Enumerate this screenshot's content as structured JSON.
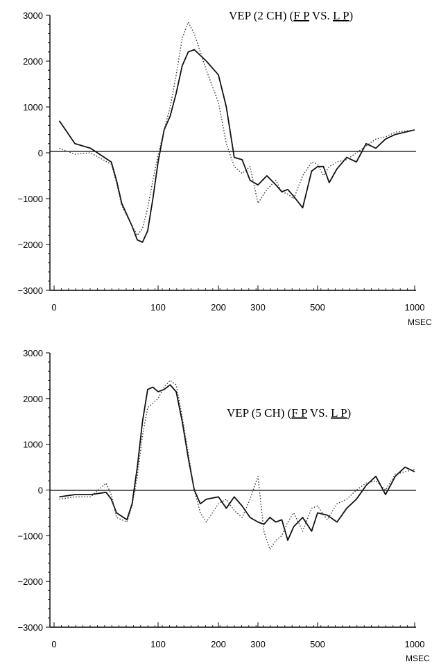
{
  "chart_data": [
    {
      "type": "line",
      "title_prefix": "VEP (2 CH) (",
      "title_fp": "F P",
      "title_vs": " VS. ",
      "title_lp": "L P",
      "title_suffix": ")",
      "xlabel": "MSEC",
      "ylabel": "",
      "x_ticks": [
        "0",
        "100",
        "200",
        "300",
        "500",
        "1000"
      ],
      "y_ticks": [
        "3000",
        "2000",
        "1000",
        "0",
        "−1000",
        "−2000",
        "−3000"
      ],
      "ylim": [
        -3000,
        3000
      ],
      "x_scale": "nonlinear (0,100,200,300,500,1000)",
      "series": [
        {
          "style": "solid",
          "color": "#111111",
          "x": [
            5,
            20,
            35,
            55,
            60,
            65,
            75,
            80,
            85,
            90,
            95,
            100,
            110,
            120,
            130,
            140,
            150,
            160,
            180,
            200,
            220,
            240,
            260,
            280,
            300,
            330,
            360,
            380,
            400,
            420,
            450,
            480,
            500,
            530,
            560,
            600,
            650,
            700,
            750,
            800,
            850,
            900,
            1000
          ],
          "y": [
            700,
            200,
            100,
            -200,
            -600,
            -1100,
            -1600,
            -1900,
            -1950,
            -1700,
            -1000,
            -200,
            500,
            800,
            1300,
            1900,
            2200,
            2250,
            2000,
            1700,
            1000,
            -100,
            -150,
            -600,
            -700,
            -500,
            -700,
            -850,
            -800,
            -950,
            -1200,
            -400,
            -300,
            -300,
            -650,
            -350,
            -100,
            -200,
            200,
            100,
            300,
            400,
            500
          ]
        },
        {
          "style": "dotted",
          "color": "#333333",
          "x": [
            5,
            20,
            35,
            55,
            60,
            65,
            75,
            80,
            85,
            90,
            95,
            100,
            110,
            120,
            130,
            140,
            150,
            160,
            180,
            200,
            220,
            240,
            260,
            280,
            300,
            330,
            360,
            380,
            400,
            420,
            450,
            480,
            500,
            530,
            560,
            600,
            650,
            700,
            750,
            800,
            850,
            900,
            1000
          ],
          "y": [
            100,
            -30,
            0,
            -250,
            -650,
            -1150,
            -1600,
            -1800,
            -1650,
            -1200,
            -600,
            -50,
            500,
            1000,
            1700,
            2500,
            2850,
            2600,
            1800,
            1100,
            200,
            -300,
            -450,
            -300,
            -1100,
            -800,
            -600,
            -850,
            -900,
            -1000,
            -500,
            -200,
            -250,
            -500,
            -300,
            -200,
            -150,
            0,
            150,
            300,
            350,
            450,
            500
          ]
        }
      ]
    },
    {
      "type": "line",
      "title_prefix": "VEP (5 CH) (",
      "title_fp": "F P",
      "title_vs": " VS. ",
      "title_lp": "L P",
      "title_suffix": ")",
      "xlabel": "MSEC",
      "ylabel": "",
      "x_ticks": [
        "0",
        "100",
        "200",
        "300",
        "500",
        "1000"
      ],
      "y_ticks": [
        "3000",
        "2000",
        "1000",
        "0",
        "−1000",
        "−2000",
        "−3000"
      ],
      "ylim": [
        -3000,
        3000
      ],
      "x_scale": "nonlinear (0,100,200,300,500,1000)",
      "series": [
        {
          "style": "solid",
          "color": "#111111",
          "x": [
            5,
            20,
            35,
            50,
            55,
            60,
            70,
            75,
            80,
            85,
            90,
            95,
            100,
            110,
            120,
            130,
            140,
            150,
            160,
            170,
            180,
            200,
            220,
            240,
            260,
            280,
            300,
            320,
            340,
            360,
            380,
            400,
            420,
            450,
            480,
            500,
            550,
            600,
            650,
            700,
            750,
            800,
            850,
            900,
            950,
            1000
          ],
          "y": [
            -150,
            -100,
            -100,
            -50,
            -200,
            -500,
            -650,
            -300,
            500,
            1500,
            2200,
            2250,
            2150,
            2200,
            2300,
            2150,
            1500,
            700,
            0,
            -300,
            -200,
            -150,
            -400,
            -150,
            -350,
            -600,
            -700,
            -750,
            -600,
            -700,
            -650,
            -1100,
            -800,
            -600,
            -900,
            -500,
            -550,
            -700,
            -400,
            -200,
            100,
            300,
            -100,
            300,
            500,
            400
          ]
        },
        {
          "style": "dotted",
          "color": "#333333",
          "x": [
            5,
            20,
            35,
            50,
            55,
            60,
            70,
            75,
            80,
            85,
            90,
            95,
            100,
            110,
            120,
            130,
            140,
            150,
            160,
            170,
            180,
            200,
            220,
            240,
            260,
            280,
            300,
            320,
            340,
            360,
            380,
            400,
            420,
            450,
            480,
            500,
            550,
            600,
            650,
            700,
            750,
            800,
            850,
            900,
            950,
            1000
          ],
          "y": [
            -200,
            -150,
            -150,
            150,
            -100,
            -600,
            -700,
            -350,
            300,
            1200,
            1800,
            1900,
            2000,
            2250,
            2400,
            2300,
            1600,
            800,
            0,
            -500,
            -700,
            -300,
            -200,
            -450,
            -600,
            -200,
            300,
            -900,
            -1300,
            -1100,
            -1000,
            -700,
            -500,
            -900,
            -400,
            -350,
            -650,
            -300,
            -200,
            0,
            150,
            200,
            0,
            350,
            400,
            450
          ]
        }
      ]
    }
  ]
}
